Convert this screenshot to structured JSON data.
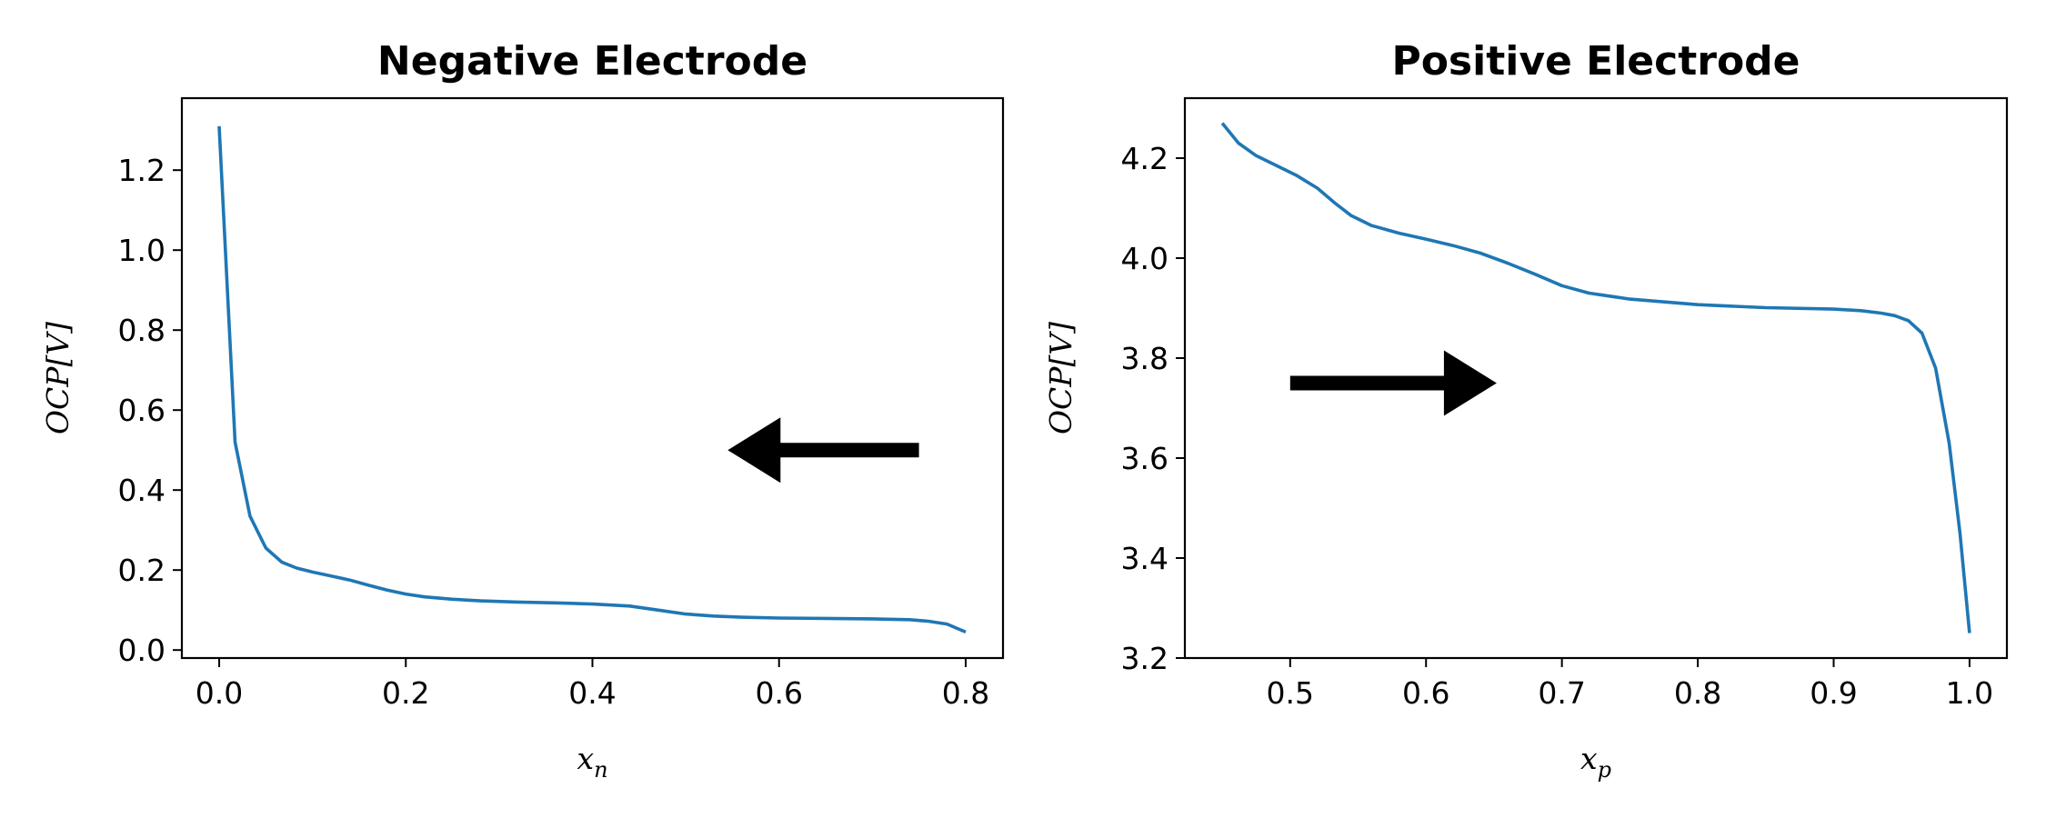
{
  "chart_data": [
    {
      "type": "line",
      "title": "Negative Electrode",
      "xlabel": "x",
      "xlabel_sub": "n",
      "ylabel": "OCP[V]",
      "xlim": [
        -0.04,
        0.84
      ],
      "ylim": [
        -0.02,
        1.38
      ],
      "xticks": [
        0.0,
        0.2,
        0.4,
        0.6,
        0.8
      ],
      "xtick_labels": [
        "0.0",
        "0.2",
        "0.4",
        "0.6",
        "0.8"
      ],
      "yticks": [
        0.0,
        0.2,
        0.4,
        0.6,
        0.8,
        1.0,
        1.2
      ],
      "ytick_labels": [
        "0.0",
        "0.2",
        "0.4",
        "0.6",
        "0.8",
        "1.0",
        "1.2"
      ],
      "grid": false,
      "series": [
        {
          "color": "#1f77b4",
          "x": [
            0.0,
            0.017,
            0.033,
            0.05,
            0.067,
            0.083,
            0.1,
            0.12,
            0.14,
            0.16,
            0.18,
            0.2,
            0.22,
            0.25,
            0.28,
            0.32,
            0.36,
            0.4,
            0.44,
            0.47,
            0.5,
            0.53,
            0.56,
            0.6,
            0.65,
            0.7,
            0.74,
            0.76,
            0.78,
            0.8
          ],
          "y": [
            1.31,
            0.52,
            0.335,
            0.255,
            0.22,
            0.205,
            0.195,
            0.185,
            0.175,
            0.162,
            0.15,
            0.14,
            0.133,
            0.127,
            0.123,
            0.12,
            0.118,
            0.115,
            0.11,
            0.1,
            0.09,
            0.085,
            0.082,
            0.08,
            0.079,
            0.078,
            0.076,
            0.072,
            0.065,
            0.045
          ]
        }
      ],
      "annotations": [
        {
          "type": "arrow",
          "direction": "left",
          "from": [
            0.75,
            0.5
          ],
          "to": [
            0.545,
            0.5
          ]
        }
      ]
    },
    {
      "type": "line",
      "title": "Positive Electrode",
      "xlabel": "x",
      "xlabel_sub": "p",
      "ylabel": "OCP[V]",
      "xlim": [
        0.4225,
        1.0275
      ],
      "ylim": [
        3.2,
        4.32
      ],
      "xticks": [
        0.5,
        0.6,
        0.7,
        0.8,
        0.9,
        1.0
      ],
      "xtick_labels": [
        "0.5",
        "0.6",
        "0.7",
        "0.8",
        "0.9",
        "1.0"
      ],
      "yticks": [
        3.2,
        3.4,
        3.6,
        3.8,
        4.0,
        4.2
      ],
      "ytick_labels": [
        "3.2",
        "3.4",
        "3.6",
        "3.8",
        "4.0",
        "4.2"
      ],
      "grid": false,
      "series": [
        {
          "color": "#1f77b4",
          "x": [
            0.45,
            0.462,
            0.475,
            0.49,
            0.505,
            0.52,
            0.533,
            0.545,
            0.56,
            0.58,
            0.6,
            0.62,
            0.64,
            0.66,
            0.68,
            0.7,
            0.72,
            0.75,
            0.8,
            0.85,
            0.9,
            0.92,
            0.935,
            0.945,
            0.955,
            0.965,
            0.975,
            0.985,
            0.993,
            1.0
          ],
          "y": [
            4.27,
            4.23,
            4.205,
            4.185,
            4.165,
            4.14,
            4.11,
            4.085,
            4.065,
            4.05,
            4.038,
            4.025,
            4.01,
            3.99,
            3.968,
            3.945,
            3.93,
            3.918,
            3.907,
            3.901,
            3.898,
            3.895,
            3.89,
            3.885,
            3.875,
            3.85,
            3.78,
            3.63,
            3.45,
            3.25
          ]
        }
      ],
      "annotations": [
        {
          "type": "arrow",
          "direction": "right",
          "from": [
            0.5,
            3.75
          ],
          "to": [
            0.652,
            3.75
          ]
        }
      ]
    }
  ]
}
